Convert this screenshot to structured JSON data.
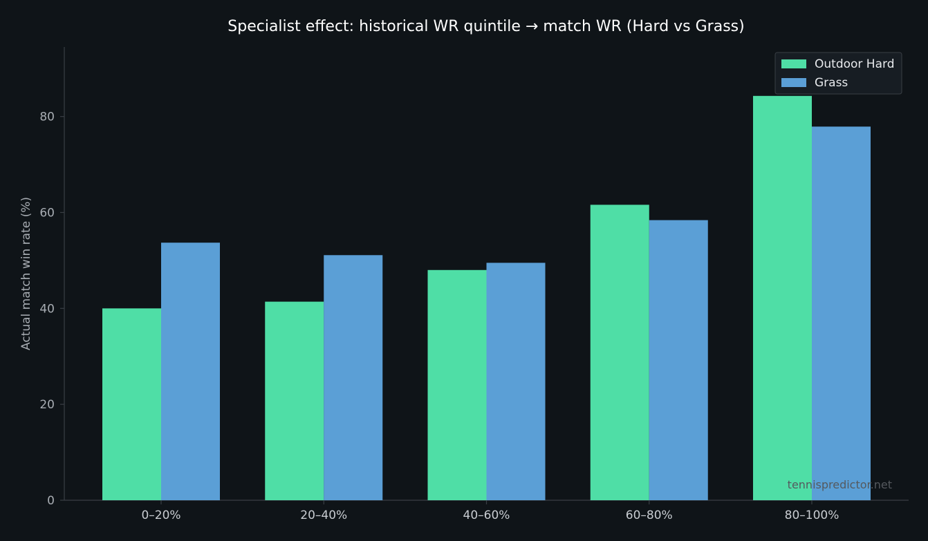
{
  "chart_data": {
    "type": "bar",
    "title": "Specialist effect: historical WR quintile → match WR (Hard vs Grass)",
    "xlabel": "",
    "ylabel": "Actual match win rate (%)",
    "categories": [
      "0–20%",
      "20–40%",
      "40–60%",
      "60–80%",
      "80–100%"
    ],
    "series": [
      {
        "name": "Outdoor Hard",
        "color": "#4fdea6",
        "values": [
          40.0,
          41.4,
          48.0,
          61.6,
          84.3
        ]
      },
      {
        "name": "Grass",
        "color": "#5b9fd6",
        "values": [
          53.7,
          51.1,
          49.5,
          58.4,
          77.9
        ]
      }
    ],
    "ylim": [
      0,
      94.5
    ],
    "yticks": [
      0,
      20,
      40,
      60,
      80
    ],
    "grid": false,
    "legend_position": "top-right",
    "watermark": "tennispredictor.net"
  },
  "colors": {
    "background": "#0f1418",
    "axis": "#3a3f45"
  }
}
